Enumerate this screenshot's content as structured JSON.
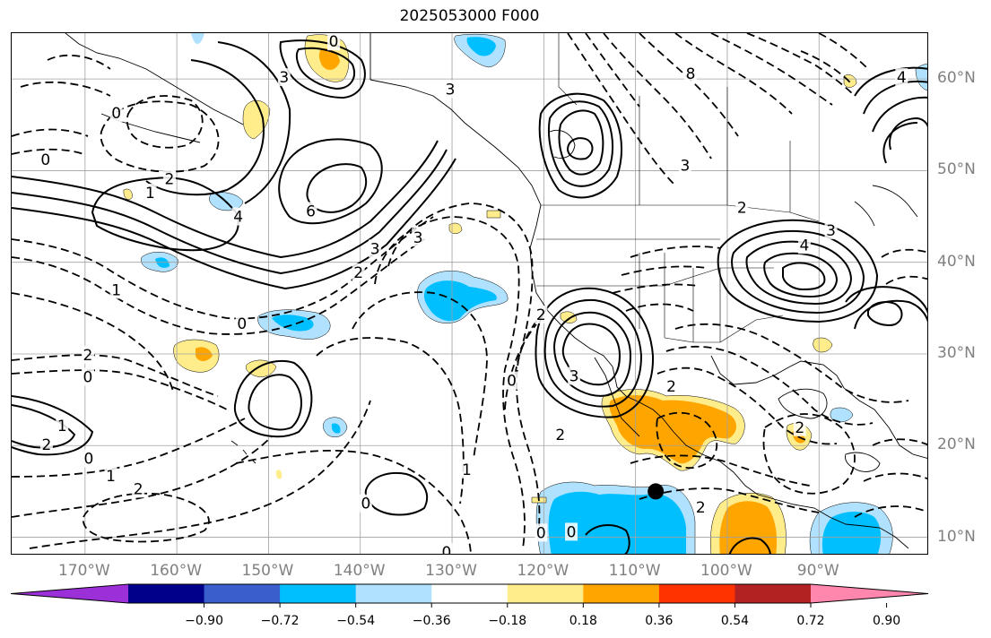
{
  "title": "2025053000 F000",
  "map": {
    "projection": "plate carree",
    "lon_range": [
      -178,
      -78
    ],
    "lat_range": [
      8,
      65
    ],
    "gridlines": true,
    "gridline_color": "#a0a0a0",
    "coastline_color": "#000000",
    "lat_ticks": [
      {
        "value": 10,
        "label": "10°N"
      },
      {
        "value": 20,
        "label": "20°N"
      },
      {
        "value": 30,
        "label": "30°N"
      },
      {
        "value": 40,
        "label": "40°N"
      },
      {
        "value": 50,
        "label": "50°N"
      },
      {
        "value": 60,
        "label": "60°N"
      }
    ],
    "lon_ticks": [
      {
        "value": -170,
        "label": "170°W"
      },
      {
        "value": -160,
        "label": "160°W"
      },
      {
        "value": -150,
        "label": "150°W"
      },
      {
        "value": -140,
        "label": "140°W"
      },
      {
        "value": -130,
        "label": "130°W"
      },
      {
        "value": -120,
        "label": "120°W"
      },
      {
        "value": -110,
        "label": "110°W"
      },
      {
        "value": -100,
        "label": "100°W"
      },
      {
        "value": -90,
        "label": "90°W"
      }
    ],
    "marker": {
      "name": "point-marker",
      "lon": -107.8,
      "lat": 15.0,
      "color": "#000000"
    },
    "contour_labels": [
      {
        "text": "0",
        "lon": -166.6,
        "lat": 56.3
      },
      {
        "text": "0",
        "lon": -174.3,
        "lat": 51.2
      },
      {
        "text": "2",
        "lon": -160.8,
        "lat": 49.1
      },
      {
        "text": "1",
        "lon": -162.9,
        "lat": 47.6
      },
      {
        "text": "4",
        "lon": -153.3,
        "lat": 45.0
      },
      {
        "text": "6",
        "lon": -145.4,
        "lat": 45.6
      },
      {
        "text": "3",
        "lon": -138.4,
        "lat": 41.5
      },
      {
        "text": "2",
        "lon": -140.2,
        "lat": 38.9
      },
      {
        "text": "0",
        "lon": -152.9,
        "lat": 33.3
      },
      {
        "text": "1",
        "lon": -166.6,
        "lat": 37.0
      },
      {
        "text": "2",
        "lon": -169.7,
        "lat": 29.9
      },
      {
        "text": "0",
        "lon": -169.7,
        "lat": 27.5
      },
      {
        "text": "1",
        "lon": -172.5,
        "lat": 22.2
      },
      {
        "text": "2",
        "lon": -174.2,
        "lat": 20.1
      },
      {
        "text": "0",
        "lon": -169.6,
        "lat": 18.6
      },
      {
        "text": "1",
        "lon": -167.2,
        "lat": 16.7
      },
      {
        "text": "2",
        "lon": -164.2,
        "lat": 15.3
      },
      {
        "text": "3",
        "lon": -148.3,
        "lat": 60.2
      },
      {
        "text": "0",
        "lon": -142.9,
        "lat": 64.1
      },
      {
        "text": "3",
        "lon": -130.2,
        "lat": 58.9
      },
      {
        "text": "3",
        "lon": -133.7,
        "lat": 42.7
      },
      {
        "text": "2",
        "lon": -120.3,
        "lat": 34.3
      },
      {
        "text": "0",
        "lon": -123.5,
        "lat": 27.1
      },
      {
        "text": "3",
        "lon": -116.7,
        "lat": 27.6
      },
      {
        "text": "2",
        "lon": -118.2,
        "lat": 21.2
      },
      {
        "text": "1",
        "lon": -128.4,
        "lat": 17.4
      },
      {
        "text": "0",
        "lon": -139.4,
        "lat": 13.7
      },
      {
        "text": "0",
        "lon": -130.6,
        "lat": 8.4
      },
      {
        "text": "0",
        "lon": -120.3,
        "lat": 10.5
      },
      {
        "text": "0",
        "lon": -117.0,
        "lat": 10.6
      },
      {
        "text": "8",
        "lon": -104.0,
        "lat": 60.6
      },
      {
        "text": "3",
        "lon": -104.6,
        "lat": 50.6
      },
      {
        "text": "2",
        "lon": -98.4,
        "lat": 46.0
      },
      {
        "text": "4",
        "lon": -91.6,
        "lat": 41.9
      },
      {
        "text": "3",
        "lon": -88.7,
        "lat": 43.5
      },
      {
        "text": "4",
        "lon": -81.0,
        "lat": 60.2
      },
      {
        "text": "2",
        "lon": -106.1,
        "lat": 26.5
      },
      {
        "text": "2",
        "lon": -92.1,
        "lat": 22.0
      },
      {
        "text": "2",
        "lon": -102.9,
        "lat": 13.3
      }
    ]
  },
  "colorbar": {
    "colors": [
      "#9b30d9",
      "#00008b",
      "#3a5fcd",
      "#00bfff",
      "#b0e2ff",
      "#ffffff",
      "#ffec8b",
      "#ffa500",
      "#ff3300",
      "#b22222",
      "#ff86ac"
    ],
    "ticks": [
      "−0.90",
      "−0.72",
      "−0.54",
      "−0.36",
      "−0.18",
      "0.18",
      "0.36",
      "0.54",
      "0.72",
      "0.90"
    ]
  }
}
